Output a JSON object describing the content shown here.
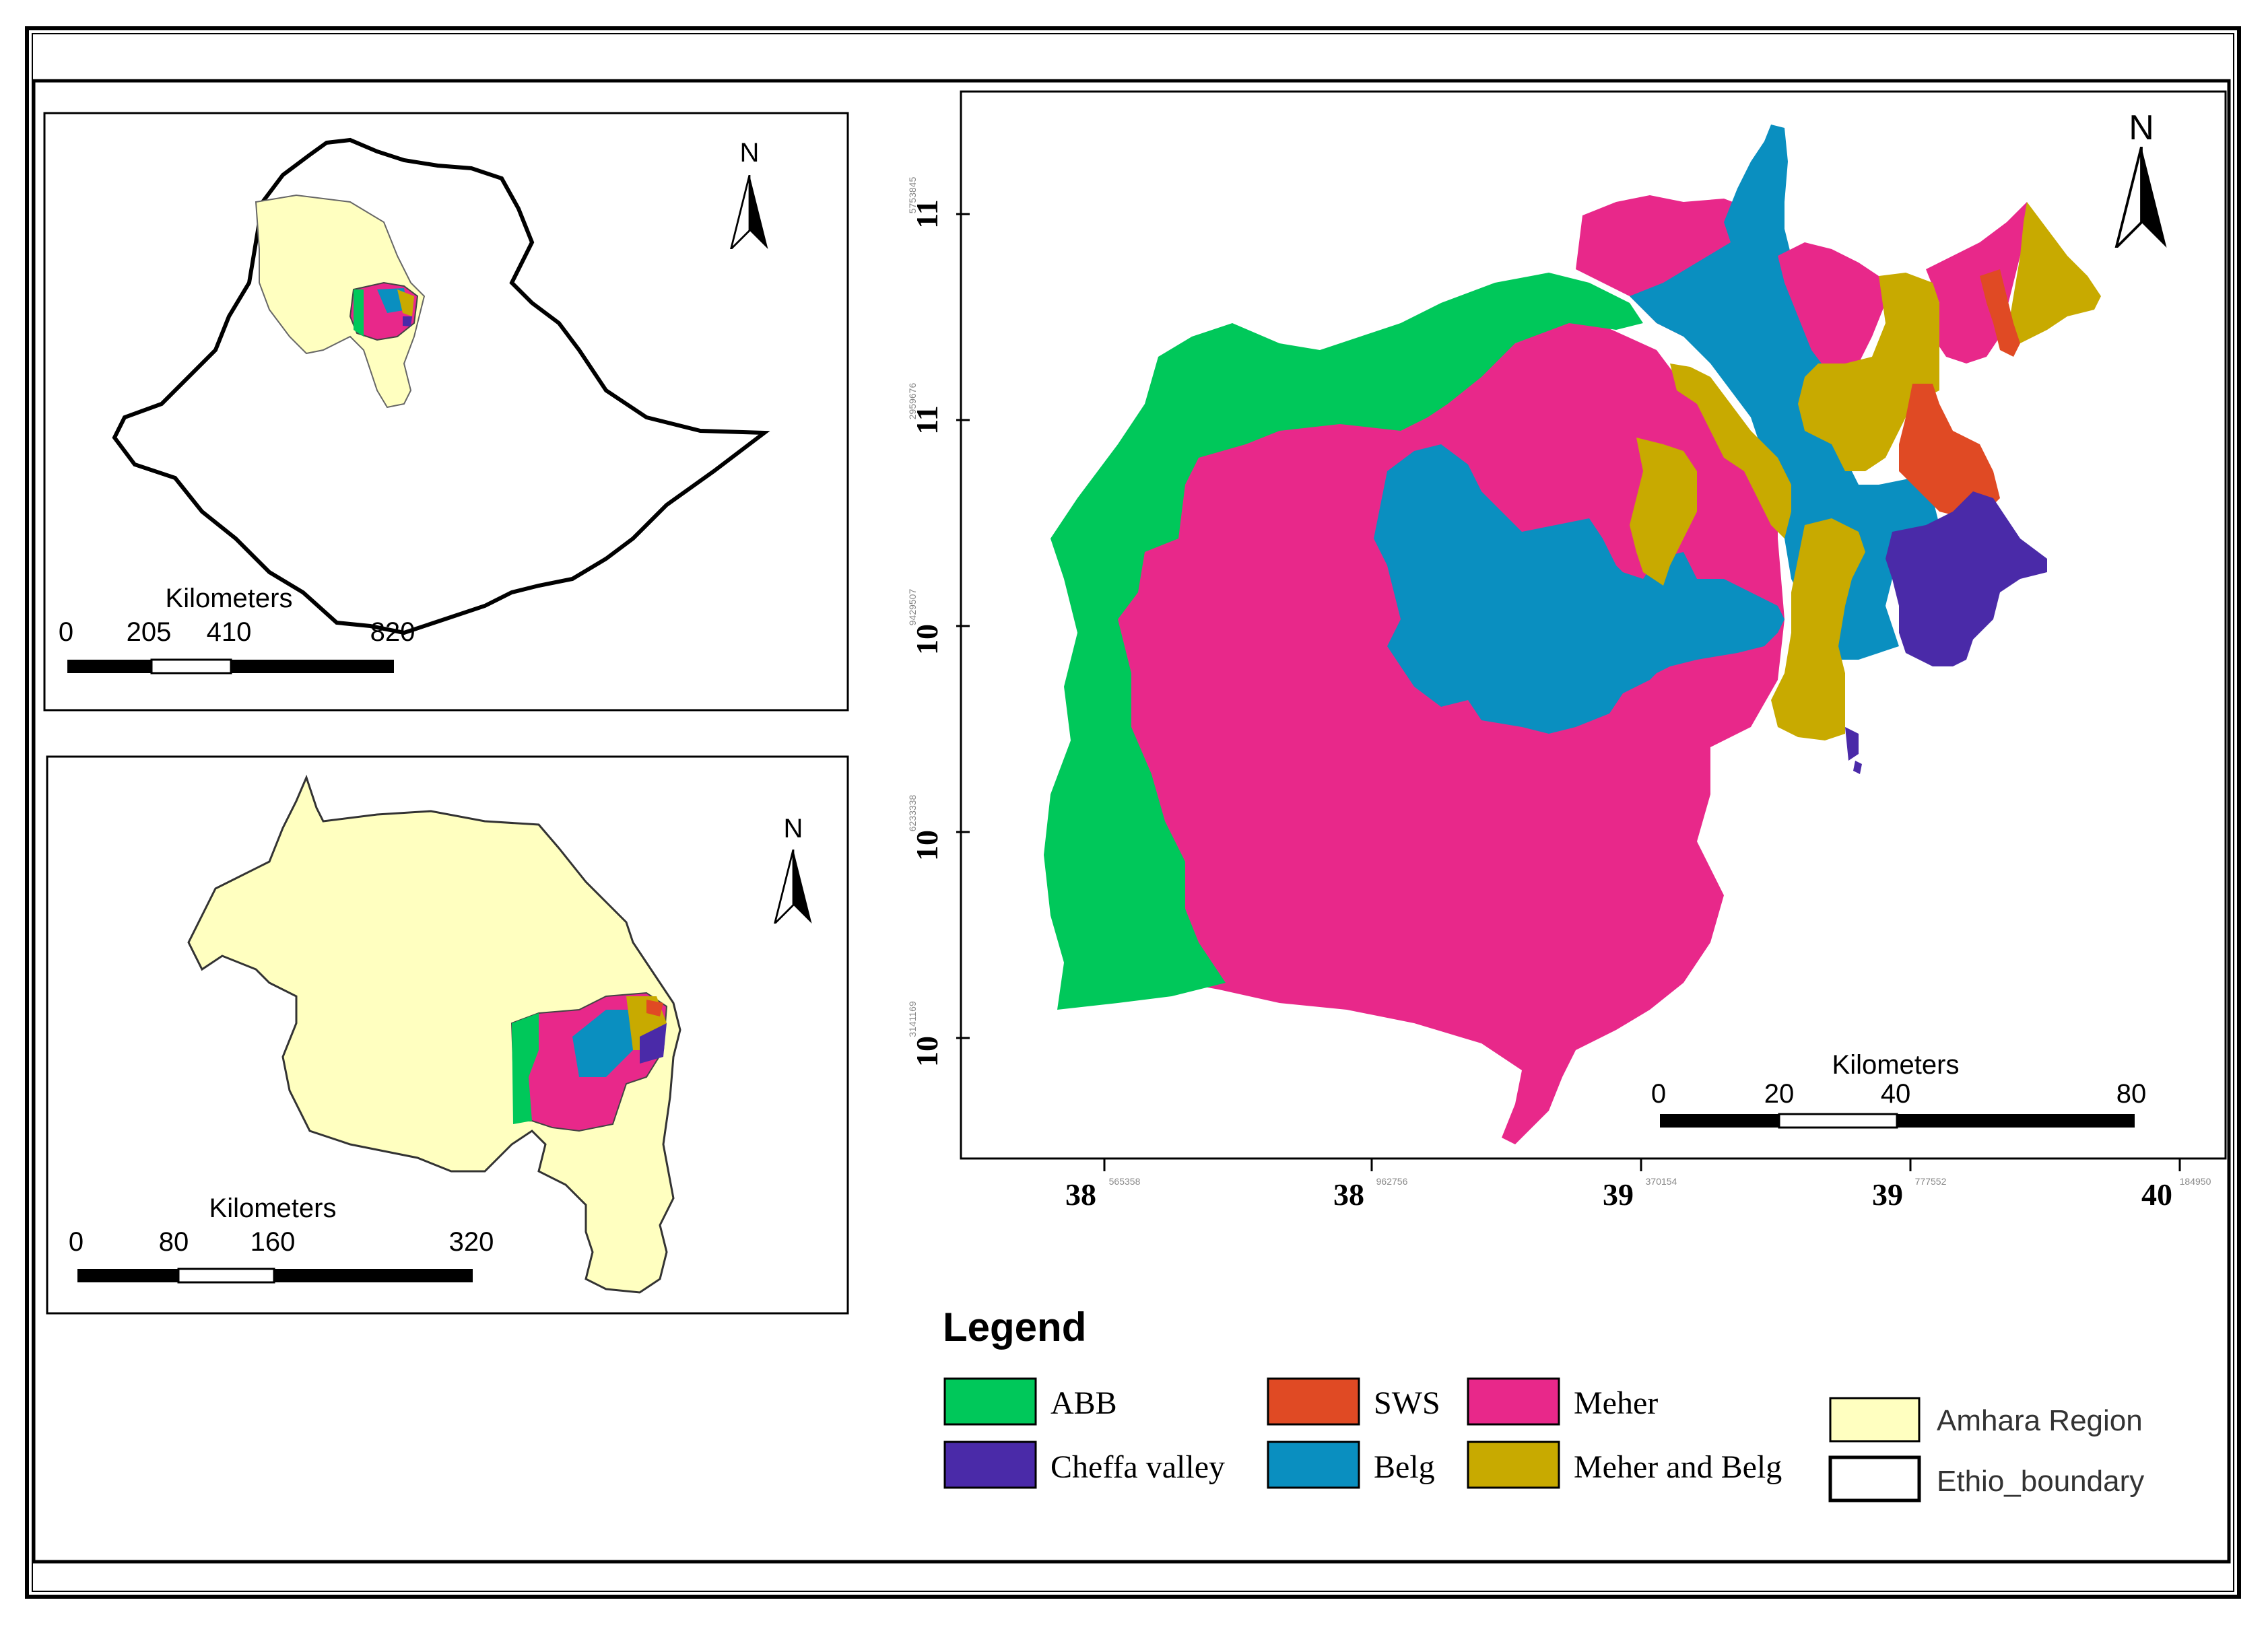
{
  "inset_ethiopia": {
    "north_label": "N",
    "scale_title": "Kilometers",
    "scale_ticks": [
      "0",
      "205",
      "410",
      "820"
    ]
  },
  "inset_amhara": {
    "north_label": "N",
    "scale_title": "Kilometers",
    "scale_ticks": [
      "0",
      "80",
      "160",
      "320"
    ]
  },
  "main_map": {
    "north_label": "N",
    "scale_title": "Kilometers",
    "scale_ticks": [
      "0",
      "20",
      "40",
      "80"
    ],
    "y_axis": {
      "labels": [
        "11",
        "11",
        "10",
        "10",
        "10"
      ],
      "small_labels": [
        "5753845",
        "2959676",
        "9429507",
        "6233338",
        "3141169"
      ]
    },
    "x_axis": {
      "labels": [
        "38",
        "38",
        "39",
        "39",
        "40"
      ],
      "small_labels": [
        "565358",
        "962756",
        "370154",
        "777552",
        "184950"
      ]
    }
  },
  "legend": {
    "title": "Legend",
    "items": [
      {
        "label": "ABB",
        "color": "#00c85a"
      },
      {
        "label": "SWS",
        "color": "#e04a24"
      },
      {
        "label": "Meher",
        "color": "#e8288a"
      },
      {
        "label": "Cheffa valley",
        "color": "#4a2aa8"
      },
      {
        "label": "Belg",
        "color": "#0a8fc0"
      },
      {
        "label": "Meher and Belg",
        "color": "#c8aa00"
      }
    ],
    "extra_items": [
      {
        "label": "Amhara Region",
        "color": "#ffffc0"
      },
      {
        "label": "Ethio_boundary",
        "color": "#ffffff"
      }
    ]
  }
}
